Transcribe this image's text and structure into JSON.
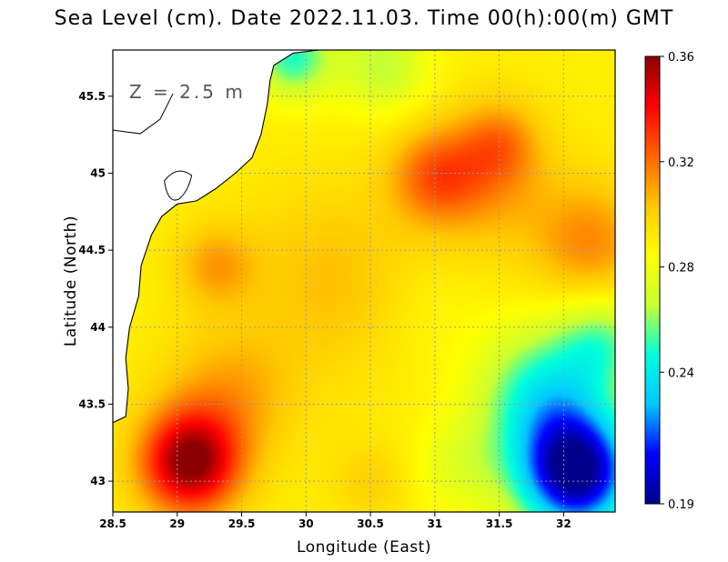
{
  "chart_data": {
    "type": "heatmap",
    "title": "Sea Level (cm). Date 2022.11.03. Time 00(h):00(m) GMT",
    "xlabel": "Longitude (East)",
    "ylabel": "Latitude (North)",
    "annotation": "Z = 2.5 m",
    "xlim": [
      28.5,
      32.4
    ],
    "ylim": [
      42.8,
      45.8
    ],
    "x_ticks": [
      {
        "value": 28.5,
        "label": "28.5"
      },
      {
        "value": 29,
        "label": "29"
      },
      {
        "value": 29.5,
        "label": "29.5"
      },
      {
        "value": 30,
        "label": "30"
      },
      {
        "value": 30.5,
        "label": "30.5"
      },
      {
        "value": 31,
        "label": "31"
      },
      {
        "value": 31.5,
        "label": "31.5"
      },
      {
        "value": 32,
        "label": "32"
      }
    ],
    "y_ticks": [
      {
        "value": 43,
        "label": "43"
      },
      {
        "value": 43.5,
        "label": "43.5"
      },
      {
        "value": 44,
        "label": "44"
      },
      {
        "value": 44.5,
        "label": "44.5"
      },
      {
        "value": 45,
        "label": "45"
      },
      {
        "value": 45.5,
        "label": "45.5"
      }
    ],
    "grid": true,
    "colorbar": {
      "min": 0.19,
      "max": 0.36,
      "ticks": [
        {
          "value": 0.36,
          "label": "0.36"
        },
        {
          "value": 0.32,
          "label": "0.32"
        },
        {
          "value": 0.28,
          "label": "0.28"
        },
        {
          "value": 0.24,
          "label": "0.24"
        },
        {
          "value": 0.19,
          "label": "0.19"
        }
      ],
      "colors": [
        "#00008b",
        "#0000ff",
        "#00c8ff",
        "#00ffdc",
        "#c8ff32",
        "#ffff00",
        "#ffc800",
        "#ff6400",
        "#ff0000",
        "#8b0000"
      ]
    },
    "field_features": [
      {
        "lon": 29.1,
        "lat": 43.12,
        "value": 0.36,
        "radius_deg": 0.38,
        "desc": "sea level maximum"
      },
      {
        "lon": 29.4,
        "lat": 43.55,
        "value": 0.31,
        "radius_deg": 0.5
      },
      {
        "lon": 30.2,
        "lat": 44.3,
        "value": 0.305,
        "radius_deg": 0.7
      },
      {
        "lon": 29.3,
        "lat": 44.4,
        "value": 0.31,
        "radius_deg": 0.3
      },
      {
        "lon": 31.0,
        "lat": 44.98,
        "value": 0.318,
        "radius_deg": 0.35
      },
      {
        "lon": 31.4,
        "lat": 44.95,
        "value": 0.31,
        "radius_deg": 0.5
      },
      {
        "lon": 32.2,
        "lat": 44.55,
        "value": 0.315,
        "radius_deg": 0.45
      },
      {
        "lon": 31.5,
        "lat": 45.2,
        "value": 0.31,
        "radius_deg": 0.3
      },
      {
        "lon": 30.5,
        "lat": 43.0,
        "value": 0.3,
        "radius_deg": 0.3
      },
      {
        "lon": 30.6,
        "lat": 45.7,
        "value": 0.265,
        "radius_deg": 0.35
      },
      {
        "lon": 29.9,
        "lat": 45.75,
        "value": 0.25,
        "radius_deg": 0.3
      },
      {
        "lon": 32.1,
        "lat": 43.05,
        "value": 0.19,
        "radius_deg": 0.45,
        "desc": "sea level minimum"
      },
      {
        "lon": 31.85,
        "lat": 43.55,
        "value": 0.245,
        "radius_deg": 0.5
      },
      {
        "lon": 32.3,
        "lat": 43.9,
        "value": 0.26,
        "radius_deg": 0.35
      },
      {
        "lon": 31.2,
        "lat": 43.1,
        "value": 0.275,
        "radius_deg": 0.35
      },
      {
        "lon": 30.9,
        "lat": 44.1,
        "value": 0.285,
        "radius_deg": 0.45
      }
    ],
    "base_value": 0.29,
    "land": {
      "fill": "#ffffff",
      "coastline": [
        [
          28.5,
          43.38
        ],
        [
          28.6,
          43.42
        ],
        [
          28.62,
          43.6
        ],
        [
          28.6,
          43.8
        ],
        [
          28.63,
          44.0
        ],
        [
          28.7,
          44.2
        ],
        [
          28.72,
          44.4
        ],
        [
          28.8,
          44.6
        ],
        [
          28.88,
          44.72
        ],
        [
          29.0,
          44.8
        ],
        [
          29.15,
          44.82
        ],
        [
          29.3,
          44.9
        ],
        [
          29.45,
          45.0
        ],
        [
          29.58,
          45.1
        ],
        [
          29.65,
          45.25
        ],
        [
          29.7,
          45.45
        ],
        [
          29.72,
          45.6
        ],
        [
          29.75,
          45.7
        ],
        [
          29.9,
          45.78
        ],
        [
          30.1,
          45.8
        ],
        [
          28.5,
          45.8
        ]
      ]
    }
  }
}
